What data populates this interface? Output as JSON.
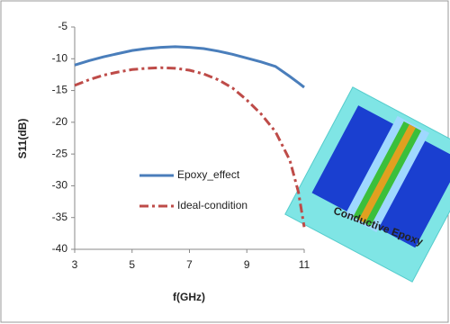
{
  "chart_data": {
    "type": "line",
    "y_label": "S11(dB)",
    "x_label": "f(GHz)",
    "x": [
      3,
      3.5,
      4,
      4.5,
      5,
      5.5,
      6,
      6.5,
      7,
      7.5,
      8,
      8.5,
      9,
      9.5,
      10,
      10.5,
      10.8,
      11
    ],
    "series": [
      {
        "name": "Epoxy_effect",
        "color": "#4a7ebb",
        "dash": "solid",
        "values": [
          -11,
          -10.3,
          -9.7,
          -9.2,
          -8.7,
          -8.4,
          -8.2,
          -8.1,
          -8.2,
          -8.4,
          -8.8,
          -9.3,
          -9.9,
          -10.5,
          -11.2,
          -12.8,
          -13.8,
          -14.5
        ]
      },
      {
        "name": "Ideal-condition",
        "color": "#be4b48",
        "dash": "dashdot",
        "values": [
          -14.2,
          -13.3,
          -12.6,
          -12.1,
          -11.7,
          -11.5,
          -11.4,
          -11.5,
          -11.8,
          -12.4,
          -13.3,
          -14.6,
          -16.5,
          -18.7,
          -21.5,
          -26,
          -31,
          -36.5
        ]
      }
    ],
    "xlim": [
      3,
      11
    ],
    "xticks": [
      3,
      5,
      7,
      9,
      11
    ],
    "ylim": [
      -40,
      -5
    ],
    "yticks": [
      -5,
      -10,
      -15,
      -20,
      -25,
      -30,
      -35,
      -40
    ],
    "grid": false,
    "legend": "center",
    "annotation": "Conductive Epoxy"
  }
}
